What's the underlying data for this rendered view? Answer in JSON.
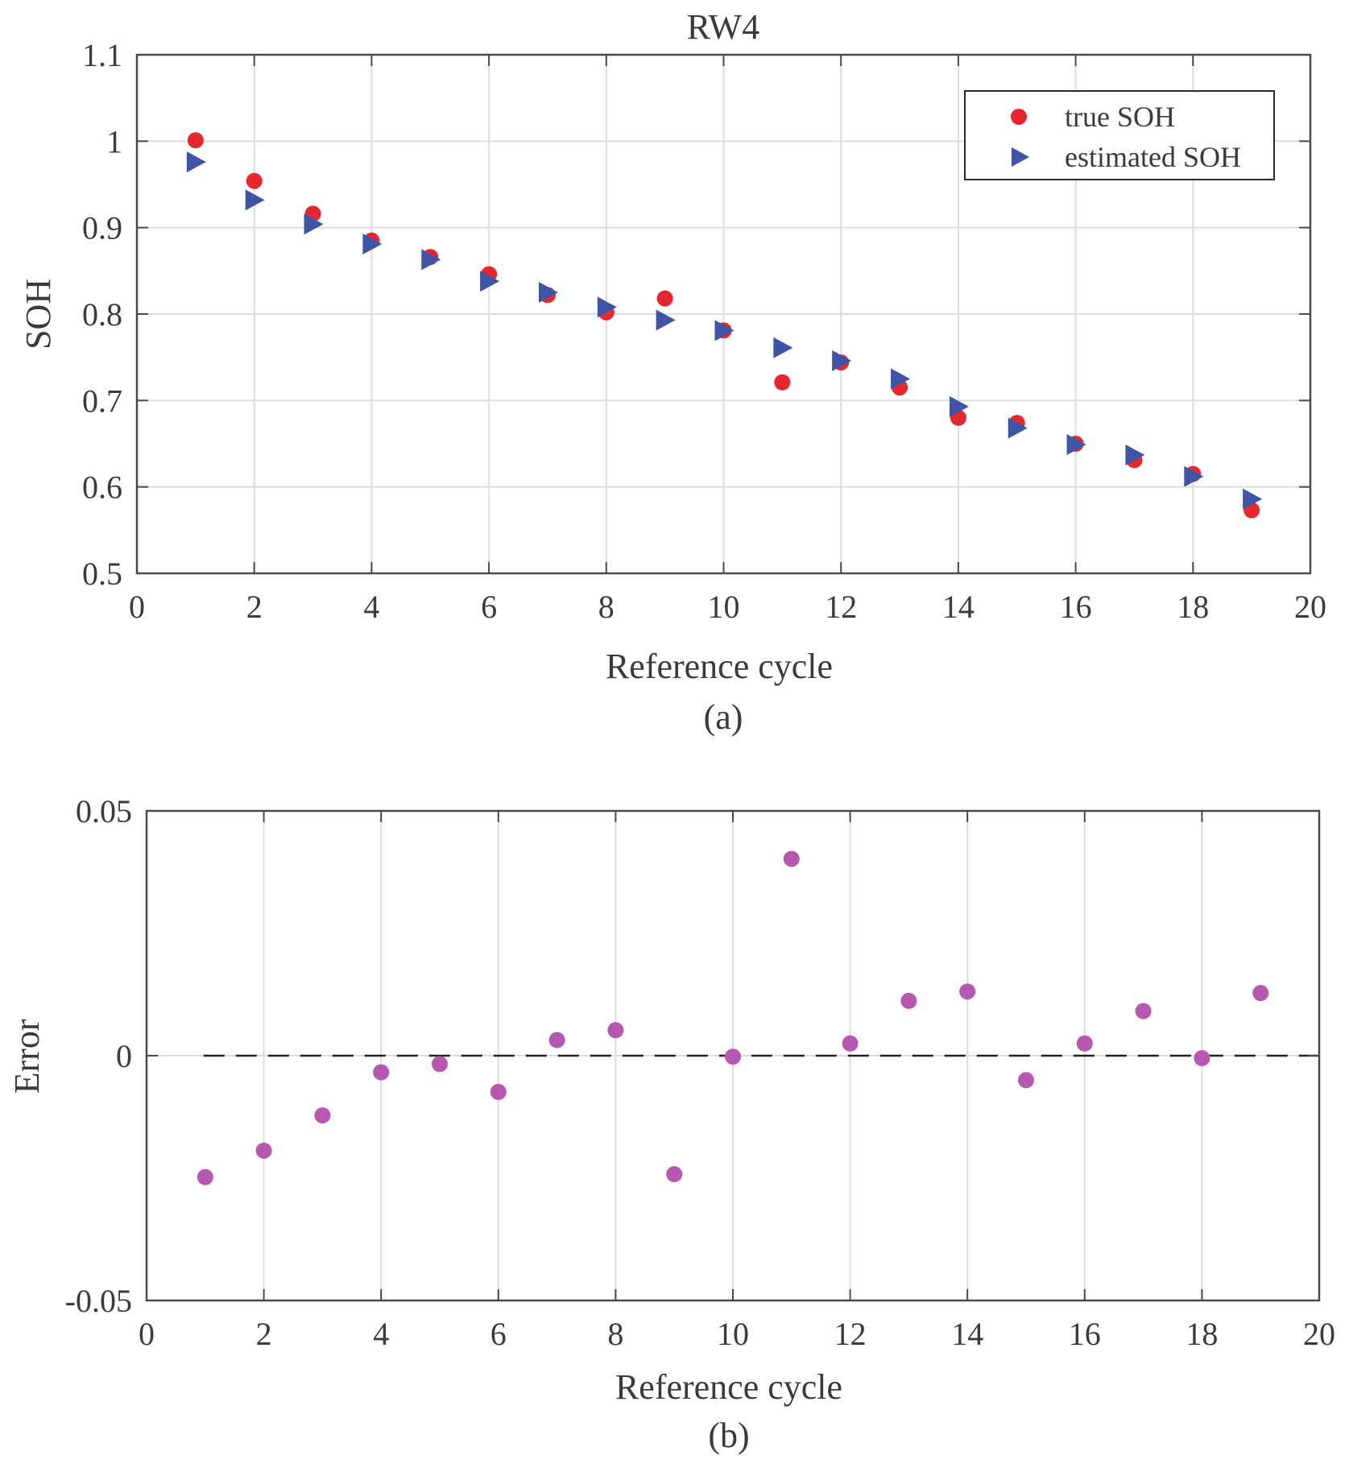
{
  "chart_data": [
    {
      "type": "scatter",
      "title": "RW4",
      "xlabel": "Reference cycle",
      "ylabel": "SOH",
      "caption": "(a)",
      "xlim": [
        0,
        20
      ],
      "ylim": [
        0.5,
        1.1
      ],
      "xticks": [
        0,
        2,
        4,
        6,
        8,
        10,
        12,
        14,
        16,
        18,
        20
      ],
      "xtick_labels": [
        "0",
        "2",
        "4",
        "6",
        "8",
        "10",
        "12",
        "14",
        "16",
        "18",
        "20"
      ],
      "yticks": [
        0.5,
        0.6,
        0.7,
        0.8,
        0.9,
        1.0,
        1.1
      ],
      "ytick_labels": [
        "0.5",
        "0.6",
        "0.7",
        "0.8",
        "0.9",
        "1",
        "1.1"
      ],
      "grid": true,
      "legend_position": "top-right",
      "series": [
        {
          "name": "true SOH",
          "marker": "circle",
          "color": "#e8262e",
          "x": [
            1,
            2,
            3,
            4,
            5,
            6,
            7,
            8,
            9,
            10,
            11,
            12,
            13,
            14,
            15,
            16,
            17,
            18,
            19
          ],
          "y": [
            1.001,
            0.954,
            0.916,
            0.885,
            0.866,
            0.846,
            0.822,
            0.802,
            0.818,
            0.781,
            0.721,
            0.744,
            0.715,
            0.68,
            0.674,
            0.65,
            0.631,
            0.615,
            0.573
          ]
        },
        {
          "name": "estimated SOH",
          "marker": "triangle-right",
          "color": "#3e55a6",
          "x": [
            1,
            2,
            3,
            4,
            5,
            6,
            7,
            8,
            9,
            10,
            11,
            12,
            13,
            14,
            15,
            16,
            17,
            18,
            19
          ],
          "y": [
            0.976,
            0.932,
            0.904,
            0.881,
            0.863,
            0.838,
            0.825,
            0.808,
            0.793,
            0.781,
            0.761,
            0.746,
            0.725,
            0.693,
            0.668,
            0.649,
            0.637,
            0.612,
            0.586
          ]
        }
      ]
    },
    {
      "type": "scatter",
      "title": "",
      "xlabel": "Reference cycle",
      "ylabel": "Error",
      "caption": "(b)",
      "xlim": [
        0,
        20
      ],
      "ylim": [
        -0.05,
        0.05
      ],
      "xticks": [
        0,
        2,
        4,
        6,
        8,
        10,
        12,
        14,
        16,
        18,
        20
      ],
      "xtick_labels": [
        "0",
        "2",
        "4",
        "6",
        "8",
        "10",
        "12",
        "14",
        "16",
        "18",
        "20"
      ],
      "yticks": [
        -0.05,
        0,
        0.05
      ],
      "ytick_labels": [
        "-0.05",
        "0",
        "0.05"
      ],
      "grid": true,
      "reference_line": {
        "y": 0,
        "style": "dashed",
        "color": "#222222"
      },
      "series": [
        {
          "name": "error",
          "marker": "circle",
          "color": "#b657b0",
          "x": [
            1,
            2,
            3,
            4,
            5,
            6,
            7,
            8,
            9,
            10,
            11,
            12,
            13,
            14,
            15,
            16,
            17,
            18,
            19
          ],
          "y": [
            -0.0248,
            -0.0194,
            -0.0122,
            -0.0034,
            -0.0017,
            -0.0074,
            0.0032,
            0.0052,
            -0.0242,
            -0.0002,
            0.0402,
            0.0025,
            0.0112,
            0.0131,
            -0.005,
            0.0025,
            0.0091,
            -0.0005,
            0.0128
          ]
        }
      ]
    }
  ]
}
